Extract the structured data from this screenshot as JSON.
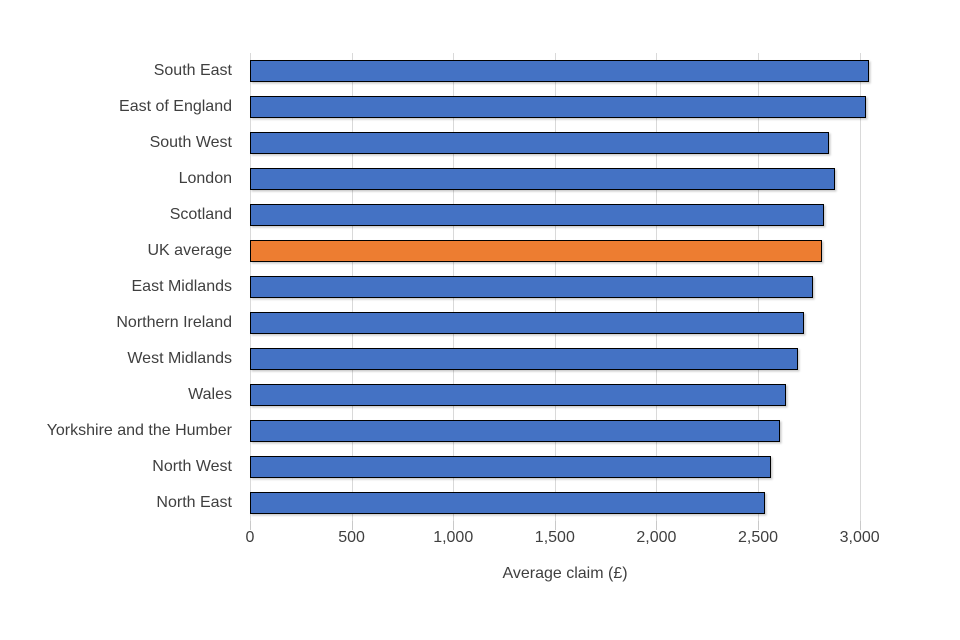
{
  "chart": {
    "colors": {
      "bar": "#4472C4",
      "highlight": "#ED7D31",
      "bar_border": "#000000",
      "gridline": "#D9D9D9",
      "text": "#3F3F3F"
    }
  },
  "chart_data": {
    "type": "bar",
    "orientation": "horizontal",
    "title": "",
    "xlabel": "Average claim (£)",
    "ylabel": "",
    "grid": "vertical",
    "legend": "none",
    "xlim": [
      0,
      3100
    ],
    "xticks": [
      0,
      500,
      1000,
      1500,
      2000,
      2500,
      3000
    ],
    "xtick_labels": [
      "0",
      "500",
      "1,000",
      "1,500",
      "2,000",
      "2,500",
      "3,000"
    ],
    "highlight_category": "UK average",
    "categories": [
      "South East",
      "East of England",
      "South West",
      "London",
      "Scotland",
      "UK average",
      "East Midlands",
      "Northern Ireland",
      "West Midlands",
      "Wales",
      "Yorkshire and the Humber",
      "North West",
      "North East"
    ],
    "values": [
      3045,
      3030,
      2850,
      2880,
      2825,
      2815,
      2770,
      2725,
      2695,
      2635,
      2610,
      2565,
      2535
    ]
  }
}
